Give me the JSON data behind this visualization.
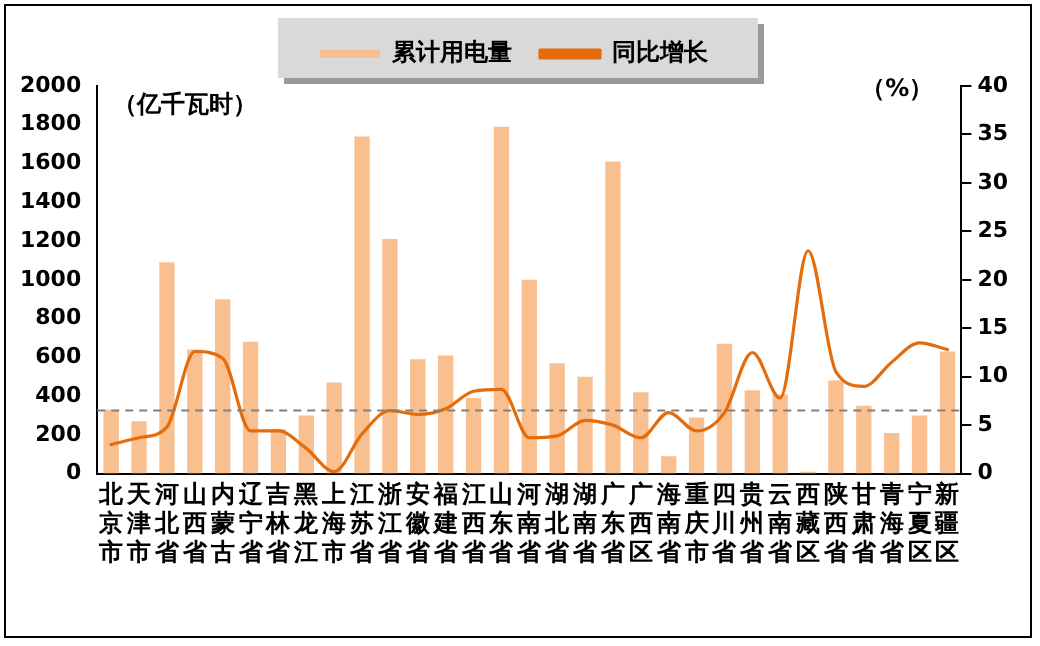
{
  "chart_data": {
    "type": "bar",
    "categories": [
      "北京市",
      "天津市",
      "河北省",
      "山西省",
      "内蒙古",
      "辽宁省",
      "吉林省",
      "黑龙江",
      "上海市",
      "江苏省",
      "浙江省",
      "安徽省",
      "福建省",
      "江西省",
      "山东省",
      "河南省",
      "湖北省",
      "湖南省",
      "广东省",
      "广西区",
      "海南省",
      "重庆市",
      "四川省",
      "贵州省",
      "云南省",
      "西藏区",
      "陕西省",
      "甘肃省",
      "青海省",
      "宁夏区",
      "新疆区"
    ],
    "series": [
      {
        "name": "累计用电量",
        "color": "#f9bf8f",
        "values": [
          330,
          270,
          1090,
          640,
          900,
          680,
          230,
          300,
          470,
          1740,
          1210,
          590,
          610,
          390,
          1790,
          1000,
          570,
          500,
          1610,
          420,
          90,
          290,
          670,
          430,
          410,
          10,
          480,
          350,
          210,
          300,
          630
        ]
      },
      {
        "name": "同比增长",
        "type": "line",
        "axis": "y2",
        "color": "#e46c0a",
        "values": [
          3.0,
          3.7,
          4.8,
          12.6,
          11.9,
          4.4,
          4.4,
          2.6,
          0.2,
          4.1,
          6.5,
          6.1,
          6.7,
          8.5,
          8.7,
          3.7,
          3.9,
          5.5,
          5.0,
          3.7,
          6.3,
          4.4,
          6.3,
          12.5,
          7.8,
          23,
          10.5,
          9,
          11.5,
          13.5,
          12.8
        ]
      }
    ],
    "ylabel": "（亿千瓦时）",
    "y2label": "（%）",
    "ylim": [
      0,
      2000
    ],
    "yticks": [
      0,
      200,
      400,
      600,
      800,
      1000,
      1200,
      1400,
      1600,
      1800,
      2000
    ],
    "y2lim": [
      0,
      40
    ],
    "y2ticks": [
      0,
      5,
      10,
      15,
      20,
      25,
      30,
      35,
      40
    ],
    "ref_lines": [
      {
        "axis": "y2",
        "value": 6.5,
        "color": "#808080",
        "line_style": "dashed"
      }
    ],
    "legend": "top",
    "grid": false
  }
}
